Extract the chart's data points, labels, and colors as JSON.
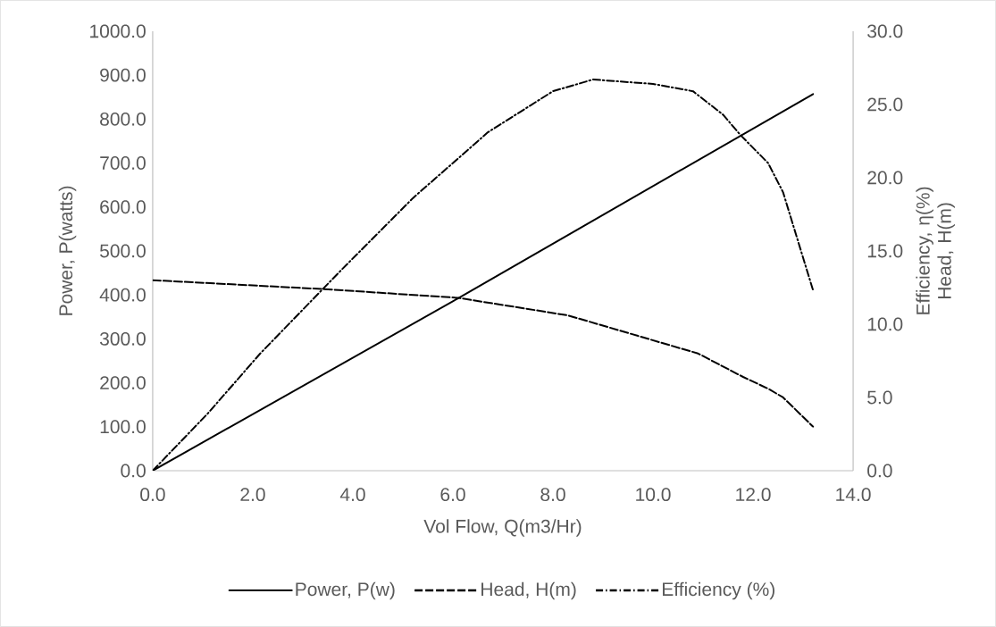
{
  "chart_data": {
    "type": "line",
    "xlabel": "Vol Flow, Q(m3/Hr)",
    "ylabel": "Power, P(watts)",
    "y2label": "Efficiency, η(%) Head, H(m)",
    "xlim": [
      0,
      14
    ],
    "xticks": [
      {
        "value": 0,
        "label": "0.0"
      },
      {
        "value": 2,
        "label": "2.0"
      },
      {
        "value": 4,
        "label": "4.0"
      },
      {
        "value": 6,
        "label": "6.0"
      },
      {
        "value": 8,
        "label": "8.0"
      },
      {
        "value": 10,
        "label": "10.0"
      },
      {
        "value": 12,
        "label": "12.0"
      },
      {
        "value": 14,
        "label": "14.0"
      }
    ],
    "ylim": [
      0,
      1000
    ],
    "yticks": [
      {
        "value": 0,
        "label": "0.0"
      },
      {
        "value": 100,
        "label": "100.0"
      },
      {
        "value": 200,
        "label": "200.0"
      },
      {
        "value": 300,
        "label": "300.0"
      },
      {
        "value": 400,
        "label": "400.0"
      },
      {
        "value": 500,
        "label": "500.0"
      },
      {
        "value": 600,
        "label": "600.0"
      },
      {
        "value": 700,
        "label": "700.0"
      },
      {
        "value": 800,
        "label": "800.0"
      },
      {
        "value": 900,
        "label": "900.0"
      },
      {
        "value": 1000,
        "label": "1000.0"
      }
    ],
    "y2lim": [
      0,
      30
    ],
    "y2ticks": [
      {
        "value": 0,
        "label": "0.0"
      },
      {
        "value": 5,
        "label": "5.0"
      },
      {
        "value": 10,
        "label": "10.0"
      },
      {
        "value": 15,
        "label": "15.0"
      },
      {
        "value": 20,
        "label": "20.0"
      },
      {
        "value": 25,
        "label": "25.0"
      },
      {
        "value": 30,
        "label": "30.0"
      }
    ],
    "grid": false,
    "legend": "bottom",
    "marker": "none",
    "series": [
      {
        "name": "Power, P(w)",
        "color": "#000000",
        "line_style": "solid",
        "x": [
          0,
          6.1,
          13.2
        ],
        "values": [
          0,
          392,
          857
        ]
      },
      {
        "name": "Head, H(m)",
        "color": "#000000",
        "line_style": "dashed",
        "axis": "y2",
        "x": [
          0,
          3.4,
          6.1,
          8.3,
          9.7,
          10.9,
          11.8,
          12.3,
          12.6,
          13.2
        ],
        "values": [
          13.0,
          12.4,
          11.8,
          10.6,
          9.2,
          8.0,
          6.4,
          5.6,
          5.0,
          3.0
        ]
      },
      {
        "name": "Efficiency (%)",
        "color": "#000000",
        "line_style": "dashdot",
        "axis": "y2",
        "x": [
          0,
          1.1,
          2.15,
          3.4,
          3.8,
          5.2,
          6.7,
          8.0,
          8.8,
          10.0,
          10.8,
          11.4,
          11.75,
          12.3,
          12.6,
          13.2
        ],
        "values": [
          0,
          3.9,
          8.0,
          12.4,
          13.8,
          18.6,
          23.1,
          25.9,
          26.7,
          26.4,
          25.9,
          24.3,
          22.9,
          21.0,
          19.0,
          12.3
        ]
      }
    ]
  }
}
